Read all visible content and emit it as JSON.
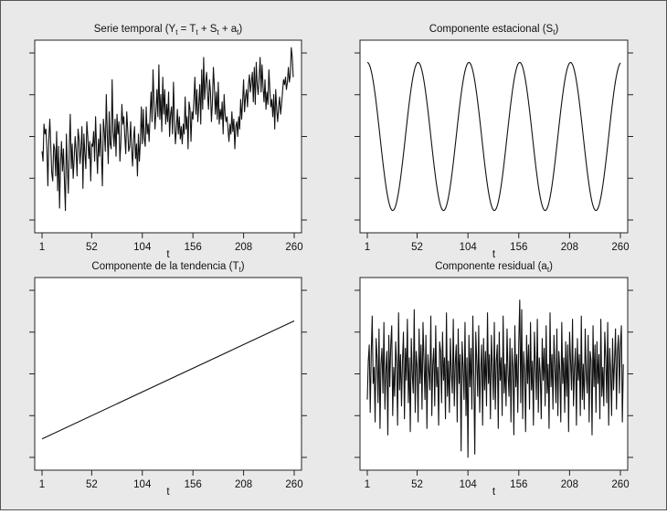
{
  "figure": {
    "background": "#e9e9ea",
    "line_color": "#111111"
  },
  "chart_data": [
    {
      "type": "line",
      "panel": "top-left",
      "title": "Serie temporal (Y",
      "title_sub": "t",
      "title_eq": " = T",
      "title_sub2": "t",
      "title_plus": " + S",
      "title_sub3": "t",
      "title_plus2": " + a",
      "title_sub4": "t",
      "title_close": ")",
      "xlabel": "t",
      "x_ticks": [
        1,
        52,
        104,
        156,
        208,
        260
      ],
      "xlim": [
        1,
        260
      ],
      "ylim": [
        -3.2,
        4.6
      ],
      "y_ticks_count": 5,
      "series": [
        {
          "x_start": 1,
          "x_step": 1,
          "values": [
            0.1,
            -0.3,
            1.2,
            0.8,
            1.0,
            0.2,
            -1.3,
            0.6,
            1.4,
            0.3,
            -0.8,
            -1.1,
            0.4,
            0.2,
            -0.9,
            0.9,
            -1.5,
            0.3,
            -2.2,
            -0.4,
            0.5,
            -0.7,
            0.2,
            -1.1,
            -2.3,
            0.8,
            -0.5,
            -1.6,
            0.3,
            1.6,
            -0.6,
            0.4,
            -1.0,
            -0.2,
            0.7,
            0.1,
            -0.9,
            1.0,
            0.6,
            -0.4,
            0.2,
            1.1,
            -1.4,
            0.8,
            0.0,
            -0.6,
            1.3,
            0.7,
            -0.2,
            0.5,
            -1.1,
            0.4,
            0.3,
            0.9,
            -0.3,
            1.5,
            0.2,
            -0.8,
            0.6,
            -0.1,
            1.2,
            0.0,
            -1.3,
            1.4,
            0.9,
            0.1,
            2.4,
            0.8,
            -0.4,
            1.7,
            0.4,
            0.2,
            3.0,
            0.9,
            0.3,
            1.4,
            -0.1,
            1.6,
            0.8,
            1.3,
            -0.3,
            0.5,
            2.0,
            1.2,
            1.5,
            0.7,
            0.0,
            1.7,
            1.0,
            0.1,
            0.3,
            1.3,
            0.2,
            -0.5,
            0.6,
            1.1,
            -0.2,
            0.4,
            -0.9,
            0.8,
            -0.3,
            0.5,
            1.9,
            0.4,
            1.8,
            0.6,
            0.3,
            1.9,
            0.8,
            1.2,
            0.5,
            1.6,
            2.5,
            1.3,
            3.4,
            2.1,
            1.0,
            1.7,
            2.6,
            1.5,
            3.6,
            1.4,
            2.4,
            0.9,
            3.1,
            1.6,
            2.6,
            1.2,
            2.0,
            1.3,
            2.5,
            0.7,
            1.6,
            1.9,
            0.8,
            2.9,
            1.4,
            0.4,
            1.0,
            1.8,
            0.8,
            1.5,
            0.6,
            1.1,
            0.4,
            1.2,
            0.8,
            2.3,
            1.0,
            1.5,
            0.2,
            2.1,
            1.8,
            0.5,
            1.7,
            1.4,
            2.2,
            3.1,
            1.6,
            2.6,
            1.3,
            2.0,
            2.8,
            1.2,
            3.4,
            1.8,
            3.9,
            2.2,
            2.9,
            3.3,
            2.4,
            1.8,
            3.0,
            2.5,
            1.3,
            2.1,
            3.5,
            2.7,
            1.6,
            2.5,
            1.4,
            2.9,
            1.2,
            1.8,
            1.4,
            2.1,
            0.8,
            2.4,
            1.6,
            1.3,
            1.5,
            1.0,
            0.5,
            1.2,
            0.8,
            1.7,
            0.9,
            1.4,
            0.2,
            1.1,
            1.3,
            0.7,
            1.5,
            1.0,
            2.2,
            1.4,
            2.1,
            3.0,
            1.7,
            2.3,
            2.6,
            1.9,
            2.8,
            3.2,
            2.5,
            2.9,
            3.3,
            2.1,
            3.5,
            2.0,
            3.7,
            2.8,
            2.4,
            3.1,
            3.9,
            2.5,
            3.6,
            2.7,
            2.1,
            3.0,
            1.8,
            2.5,
            2.0,
            3.4,
            2.6,
            1.9,
            2.2,
            1.5,
            2.4,
            1.0,
            2.6,
            1.8,
            1.3,
            1.9,
            2.3,
            1.6,
            2.0,
            2.5,
            3.0,
            2.8,
            3.1,
            2.6,
            2.9,
            3.5,
            2.9,
            3.2,
            4.3,
            3.9,
            3.1
          ]
        }
      ]
    },
    {
      "type": "line",
      "panel": "top-right",
      "title": "Componente estacional (S",
      "title_sub": "t",
      "title_close": ")",
      "xlabel": "t",
      "x_ticks": [
        1,
        52,
        104,
        156,
        208,
        260
      ],
      "xlim": [
        1,
        260
      ],
      "ylim": [
        -1.3,
        1.3
      ],
      "y_ticks_count": 5,
      "series": [
        {
          "function": "cos",
          "amplitude": 1,
          "period": 52,
          "phase_t": 1,
          "x_step": 1
        }
      ]
    },
    {
      "type": "line",
      "panel": "bottom-left",
      "title": "Componente de la tendencia (T",
      "title_sub": "t",
      "title_close": ")",
      "xlabel": "t",
      "x_ticks": [
        1,
        52,
        104,
        156,
        208,
        260
      ],
      "xlim": [
        1,
        260
      ],
      "ylim": [
        0,
        4
      ],
      "y_ticks_count": 5,
      "series": [
        {
          "x": [
            1,
            260
          ],
          "values": [
            0.65,
            3.1
          ]
        }
      ]
    },
    {
      "type": "line",
      "panel": "bottom-right",
      "title": "Componente residual (a",
      "title_sub": "t",
      "title_close": ")",
      "xlabel": "t",
      "x_ticks": [
        1,
        52,
        104,
        156,
        208,
        260
      ],
      "xlim": [
        1,
        260
      ],
      "ylim": [
        -3,
        3
      ],
      "y_ticks_count": 5,
      "series": [
        {
          "x_start": 1,
          "x_step": 1,
          "values": [
            -0.8,
            0.4,
            0.9,
            -1.2,
            0.6,
            1.8,
            -0.3,
            0.2,
            -1.5,
            1.1,
            0.5,
            -0.9,
            1.4,
            -1.7,
            0.3,
            0.8,
            -0.6,
            1.6,
            -1.1,
            0.1,
            0.7,
            -1.9,
            1.2,
            -0.4,
            0.9,
            1.5,
            -1.3,
            0.2,
            -0.7,
            1.0,
            0.3,
            -1.6,
            1.9,
            -0.5,
            0.6,
            -1.0,
            0.4,
            1.3,
            -1.4,
            0.8,
            -0.2,
            1.7,
            -0.9,
            0.5,
            -1.8,
            1.1,
            0.0,
            -0.6,
            2.0,
            -1.2,
            0.7,
            0.2,
            -1.5,
            1.4,
            -0.3,
            0.9,
            -1.1,
            1.6,
            0.4,
            -0.8,
            1.2,
            -1.7,
            0.6,
            0.1,
            -0.5,
            1.8,
            -1.3,
            0.3,
            0.8,
            -1.0,
            1.5,
            -0.4,
            0.2,
            -1.6,
            1.0,
            0.7,
            -0.9,
            1.3,
            -0.2,
            0.5,
            -1.4,
            1.9,
            -0.7,
            0.4,
            -1.2,
            1.1,
            0.0,
            -0.6,
            1.7,
            -1.0,
            0.3,
            0.9,
            -1.5,
            1.4,
            -0.3,
            0.6,
            -2.4,
            1.0,
            0.2,
            -0.8,
            1.6,
            -1.3,
            0.5,
            -2.6,
            1.2,
            -0.4,
            0.8,
            -1.1,
            1.8,
            -0.2,
            -2.5,
            1.3,
            0.4,
            -0.7,
            1.5,
            -1.2,
            0.1,
            0.9,
            -1.6,
            1.1,
            -0.5,
            0.7,
            -1.0,
            1.9,
            -0.3,
            0.6,
            -1.4,
            1.2,
            0.2,
            -0.8,
            1.6,
            -1.1,
            0.4,
            0.9,
            -1.7,
            1.3,
            -0.2,
            0.5,
            -1.3,
            1.8,
            -0.6,
            0.3,
            -1.0,
            1.4,
            0.0,
            -0.7,
            1.1,
            -1.5,
            0.8,
            0.2,
            -1.9,
            1.5,
            -0.4,
            0.6,
            -1.2,
            1.0,
            2.3,
            -0.9,
            2.0,
            -1.4,
            0.7,
            0.1,
            -1.8,
            1.2,
            -0.3,
            0.9,
            -1.1,
            1.6,
            -0.5,
            0.4,
            -1.6,
            1.3,
            0.3,
            -0.8,
            1.7,
            -1.2,
            0.5,
            0.0,
            -1.4,
            1.1,
            -0.2,
            0.8,
            -1.0,
            1.5,
            -0.6,
            0.3,
            -1.7,
            1.9,
            -0.4,
            0.6,
            -1.1,
            1.2,
            0.2,
            -0.9,
            1.4,
            -1.3,
            0.7,
            0.1,
            -1.5,
            1.6,
            -0.3,
            0.5,
            -1.2,
            1.0,
            -0.7,
            0.9,
            -1.8,
            1.3,
            0.4,
            -0.5,
            1.7,
            -1.0,
            0.2,
            0.8,
            -1.6,
            1.1,
            -0.2,
            0.6,
            -1.3,
            1.8,
            -0.8,
            0.3,
            -1.1,
            1.4,
            0.0,
            -0.6,
            1.2,
            -1.5,
            0.7,
            0.4,
            -1.9,
            1.5,
            -0.4,
            0.9,
            -1.2,
            1.0,
            -0.3,
            0.6,
            -1.4,
            1.7,
            -0.7,
            0.2,
            -1.0,
            1.3,
            0.5,
            -0.9,
            1.6,
            -1.6,
            0.8,
            0.1,
            -1.3,
            1.1,
            -0.5,
            0.4,
            1.4,
            -1.1,
            0.7,
            1.2,
            -0.6,
            0.9,
            1.5,
            -1.5,
            0.3
          ]
        }
      ]
    }
  ]
}
